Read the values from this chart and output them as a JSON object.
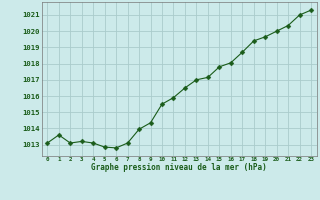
{
  "x": [
    0,
    1,
    2,
    3,
    4,
    5,
    6,
    7,
    8,
    9,
    10,
    11,
    12,
    13,
    14,
    15,
    16,
    17,
    18,
    19,
    20,
    21,
    22,
    23
  ],
  "y": [
    1013.1,
    1013.6,
    1013.1,
    1013.2,
    1013.1,
    1012.85,
    1012.8,
    1013.1,
    1013.95,
    1014.35,
    1015.5,
    1015.9,
    1016.5,
    1017.0,
    1017.15,
    1017.8,
    1018.05,
    1018.7,
    1019.4,
    1019.65,
    1020.0,
    1020.35,
    1021.0,
    1021.3
  ],
  "line_color": "#1a5c1a",
  "marker": "D",
  "marker_size": 2.5,
  "bg_color": "#cceaea",
  "grid_color": "#aacccc",
  "xlabel": "Graphe pression niveau de la mer (hPa)",
  "xlabel_color": "#1a5c1a",
  "tick_color": "#1a5c1a",
  "ylim": [
    1012.3,
    1021.8
  ],
  "xlim": [
    -0.5,
    23.5
  ],
  "yticks": [
    1013,
    1014,
    1015,
    1016,
    1017,
    1018,
    1019,
    1020,
    1021
  ],
  "xticks": [
    0,
    1,
    2,
    3,
    4,
    5,
    6,
    7,
    8,
    9,
    10,
    11,
    12,
    13,
    14,
    15,
    16,
    17,
    18,
    19,
    20,
    21,
    22,
    23
  ]
}
